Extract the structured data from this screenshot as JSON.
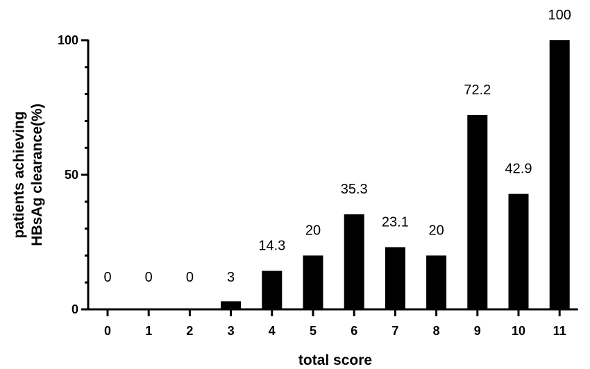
{
  "chart_data": {
    "type": "bar",
    "title": "",
    "xlabel": "total score",
    "ylabel_lines": [
      "patients achieving",
      "HBsAg clearance(%)"
    ],
    "categories": [
      "0",
      "1",
      "2",
      "3",
      "4",
      "5",
      "6",
      "7",
      "8",
      "9",
      "10",
      "11"
    ],
    "values": [
      0,
      0,
      0,
      3,
      14.3,
      20,
      35.3,
      23.1,
      20,
      72.2,
      42.9,
      100
    ],
    "data_labels": [
      "0",
      "0",
      "0",
      "3",
      "14.3",
      "20",
      "35.3",
      "23.1",
      "20",
      "72.2",
      "42.9",
      "100"
    ],
    "ylim": [
      0,
      100
    ],
    "yticks": [
      0,
      50,
      100
    ],
    "grid": false,
    "bar_color": "#000000"
  }
}
